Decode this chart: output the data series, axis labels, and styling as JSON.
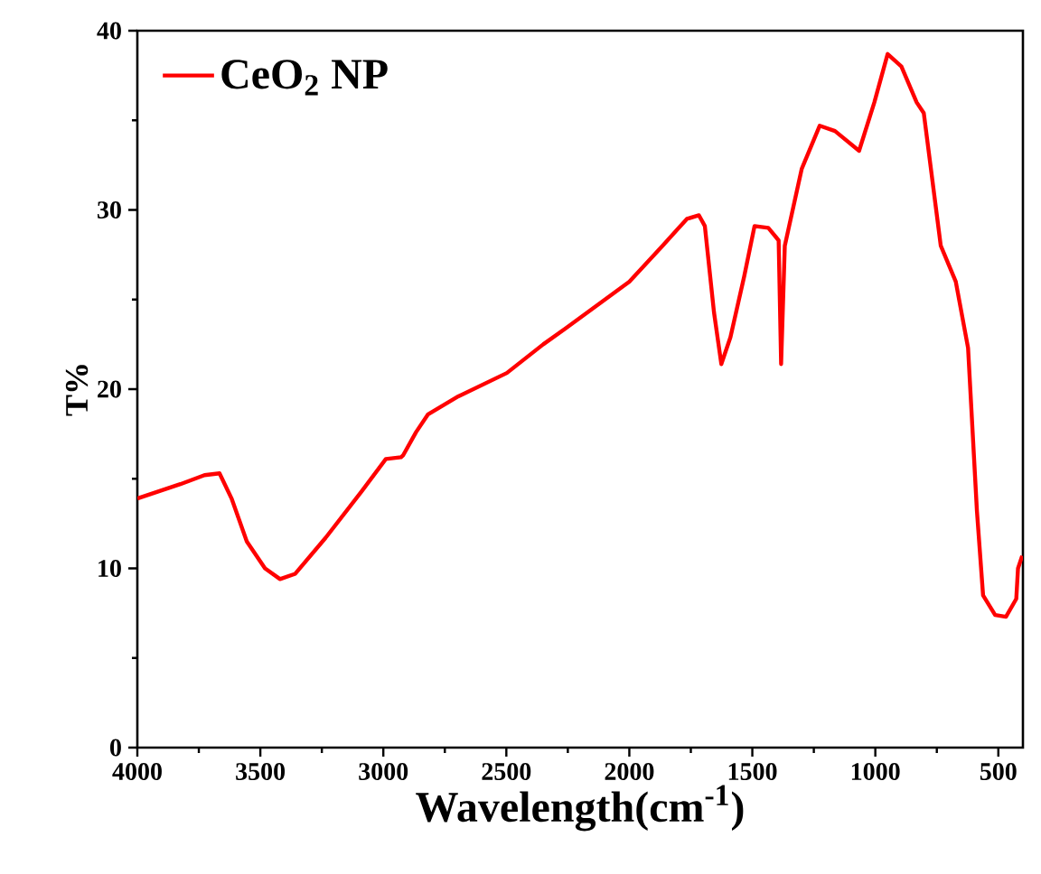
{
  "chart_data": {
    "type": "line",
    "xlabel": "Wavelength(cm$^{-1}$)",
    "ylabel": "T%",
    "xlim": [
      4000,
      400
    ],
    "ylim": [
      0,
      40
    ],
    "xticks": [
      4000,
      3500,
      3000,
      2500,
      2000,
      1500,
      1000,
      500
    ],
    "yticks": [
      0,
      10,
      20,
      30,
      40
    ],
    "legend": "top left",
    "grid": false,
    "series": [
      {
        "name": "CeO$_{2}$ NP",
        "color": "#ff0000",
        "x": [
          4000,
          3825,
          3727,
          3666,
          3617,
          3555,
          3481,
          3420,
          3358,
          3235,
          3088,
          2990,
          2928,
          2920,
          2867,
          2818,
          2695,
          2498,
          2350,
          2258,
          2000,
          1865,
          1766,
          1717,
          1693,
          1656,
          1626,
          1589,
          1533,
          1491,
          1435,
          1393,
          1383,
          1368,
          1299,
          1226,
          1164,
          1066,
          1004,
          950,
          894,
          832,
          803,
          734,
          673,
          623,
          587,
          562,
          513,
          469,
          427,
          420,
          403
        ],
        "values": [
          13.9,
          14.7,
          15.2,
          15.3,
          13.9,
          11.5,
          10.0,
          9.4,
          9.7,
          11.7,
          14.3,
          16.1,
          16.2,
          16.3,
          17.6,
          18.6,
          19.6,
          20.9,
          22.5,
          23.4,
          26.0,
          28.0,
          29.5,
          29.7,
          29.1,
          24.3,
          21.4,
          22.9,
          26.3,
          29.1,
          29.0,
          28.3,
          21.4,
          28.0,
          32.3,
          34.7,
          34.4,
          33.3,
          36.0,
          38.7,
          38.0,
          36.0,
          35.4,
          28.0,
          26.0,
          22.3,
          13.2,
          8.5,
          7.4,
          7.3,
          8.3,
          10.0,
          10.7
        ]
      }
    ]
  }
}
